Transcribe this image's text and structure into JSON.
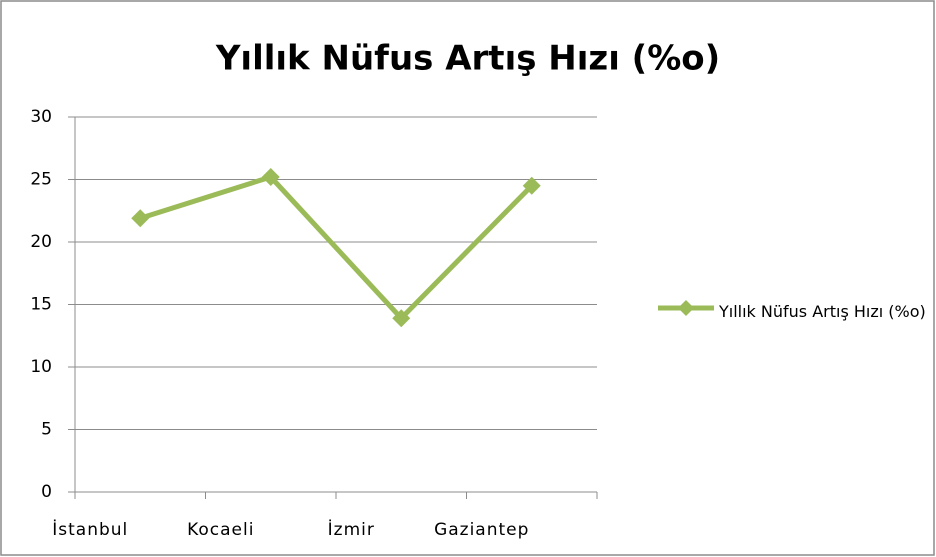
{
  "chart_data": {
    "type": "line",
    "title": "Yıllık Nüfus Artış Hızı (%o)",
    "categories": [
      "İstanbul",
      "Kocaeli",
      "İzmir",
      "Gaziantep"
    ],
    "series": [
      {
        "name": "Yıllık Nüfus Artış Hızı (%o)",
        "color": "#9bbb59",
        "values": [
          21.9,
          25.2,
          13.9,
          24.5
        ]
      }
    ],
    "ylim": [
      0,
      30
    ],
    "yticks": [
      0,
      5,
      10,
      15,
      20,
      25,
      30
    ],
    "grid": true,
    "legend": "right"
  }
}
